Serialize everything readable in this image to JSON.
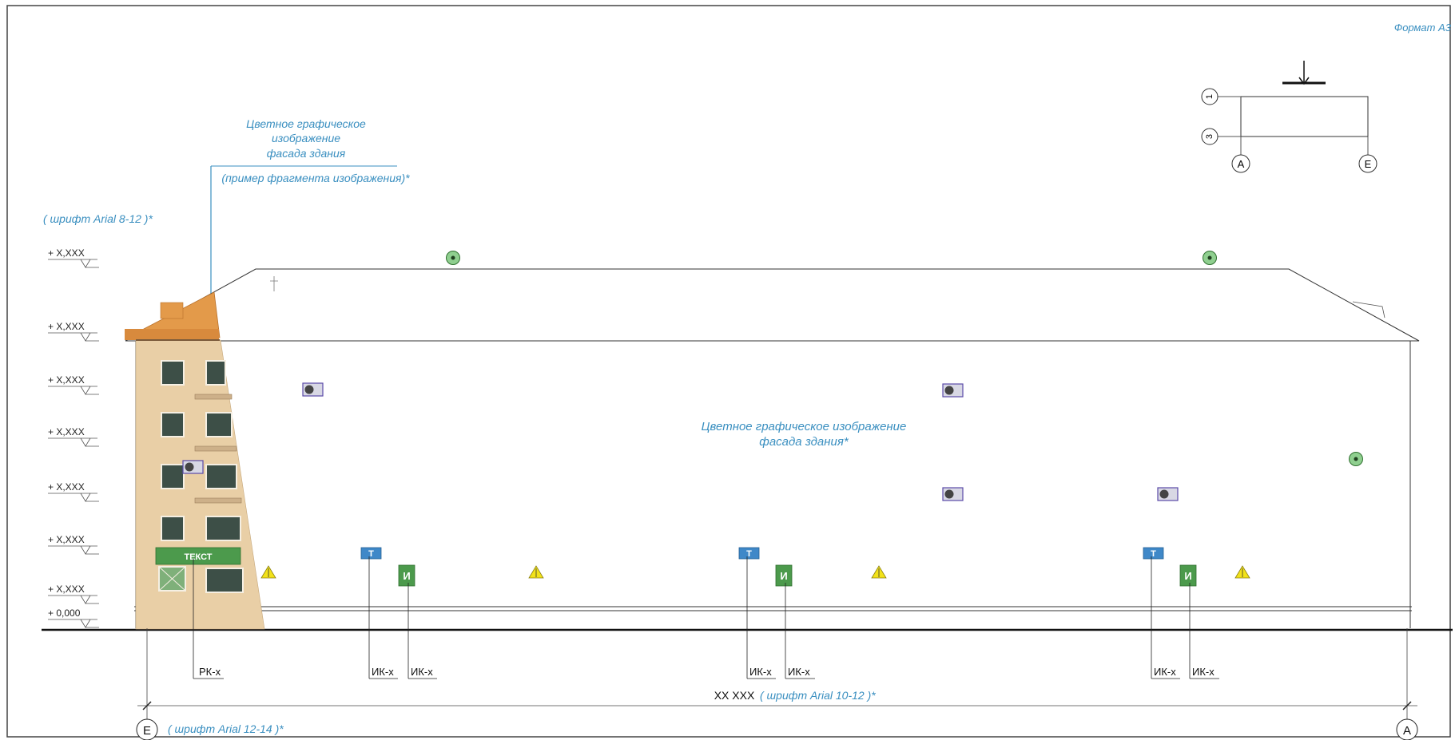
{
  "format_label": "Формат А3",
  "notes": {
    "callout_title": [
      "Цветное графическое",
      "изображение",
      "фасада здания"
    ],
    "callout_sub": "(пример фрагмента изображения)*",
    "font_note_levels": "( шрифт Arial 8-12 )*",
    "center_note": [
      "Цветное графическое изображение",
      "фасада здания*"
    ],
    "dimension_font_note": "( шрифт Arial 10-12 )*",
    "axis_font_note": "( шрифт Arial 12-14 )*"
  },
  "levels": [
    "+ X,XXX",
    "+ X,XXX",
    "+ X,XXX",
    "+ X,XXX",
    "+ X,XXX",
    "+ X,XXX",
    "+ X,XXX",
    "+ 0,000"
  ],
  "sign_text": "ТЕКСТ",
  "equipment_letters": {
    "info_plate": "И",
    "tablet": "Т"
  },
  "tags": [
    "РК-х",
    "ИК-х",
    "ИК-х",
    "ИК-х",
    "ИК-х",
    "ИК-х",
    "ИК-х"
  ],
  "dimension": "XX XXX",
  "axes": {
    "left": "Е",
    "right": "А"
  },
  "key_plan": {
    "rows": [
      "1",
      "3"
    ],
    "cols": [
      "А",
      "Е"
    ]
  },
  "colors": {
    "note_blue": "#3a8fc0",
    "facade_beige": "#e9cfa6",
    "roof_orange": "#e39a4a",
    "sign_green": "#4c9a4c",
    "tablet_blue": "#3f88c8",
    "camera_frame": "#5a4aa8",
    "lamp_yellow": "#f2e21a",
    "marker_green": "#8fcf8f"
  },
  "icons": [
    "camera-icon",
    "round-marker-icon",
    "lamp-icon",
    "info-plate-icon",
    "tablet-icon",
    "view-arrow-icon"
  ]
}
